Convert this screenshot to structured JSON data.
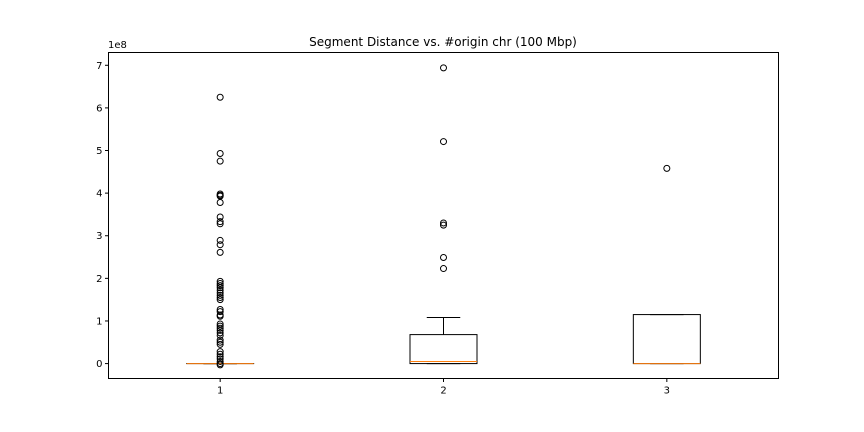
{
  "chart_data": {
    "type": "box",
    "title": "Segment Distance vs. #origin chr (100 Mbp)",
    "xlabel": "",
    "ylabel": "",
    "y_offset_label": "1e8",
    "y_scale": 100000000,
    "categories": [
      "1",
      "2",
      "3"
    ],
    "yticks": [
      0,
      1,
      2,
      3,
      4,
      5,
      6,
      7
    ],
    "ylim": [
      -0.35,
      7.3
    ],
    "xlim": [
      0.5,
      3.5
    ],
    "grid": false,
    "boxes": [
      {
        "position": 1,
        "label": "1",
        "whisker_low": 0.0,
        "q1": 0.0,
        "median": 0.0,
        "q3": 0.0,
        "whisker_high": 0.0,
        "fliers": [
          6.25,
          4.93,
          4.75,
          3.98,
          3.95,
          3.93,
          3.78,
          3.44,
          3.33,
          3.28,
          2.89,
          2.79,
          2.61,
          1.93,
          1.88,
          1.83,
          1.78,
          1.72,
          1.66,
          1.6,
          1.55,
          1.5,
          1.27,
          1.22,
          1.14,
          1.11,
          0.93,
          0.88,
          0.83,
          0.78,
          0.72,
          0.66,
          0.55,
          0.5,
          0.45,
          0.28,
          0.22,
          0.16,
          0.11,
          0.05,
          0.0,
          -0.03
        ]
      },
      {
        "position": 2,
        "label": "2",
        "whisker_low": 0.0,
        "q1": 0.0,
        "median": 0.05,
        "q3": 0.68,
        "whisker_high": 1.08,
        "fliers": [
          6.94,
          5.21,
          3.3,
          3.25,
          2.49,
          2.23
        ]
      },
      {
        "position": 3,
        "label": "3",
        "whisker_low": 0.0,
        "q1": 0.0,
        "median": 0.0,
        "q3": 1.15,
        "whisker_high": 1.15,
        "fliers": [
          4.58
        ]
      }
    ],
    "colors": {
      "box": "#000000",
      "median": "#ff7f0e",
      "flier": "#000000",
      "background": "#ffffff"
    }
  }
}
